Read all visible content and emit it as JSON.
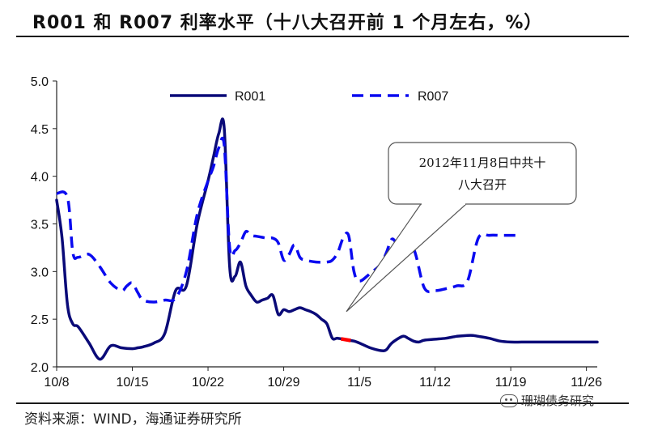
{
  "chart_data": {
    "type": "line",
    "title": "R001 和 R007 利率水平（十八大召开前 1 个月左右，%）",
    "xlabel": "",
    "ylabel": "",
    "ylim": [
      2.0,
      5.0
    ],
    "yticks": [
      "2.0",
      "2.5",
      "3.0",
      "3.5",
      "4.0",
      "4.5",
      "5.0"
    ],
    "categories": [
      "10/8",
      "10/15",
      "10/22",
      "10/29",
      "11/5",
      "11/12",
      "11/19",
      "11/26"
    ],
    "x_range_days": [
      0,
      50
    ],
    "x_ticks_days": [
      0,
      7,
      14,
      21,
      28,
      35,
      42,
      49
    ],
    "series": [
      {
        "name": "R001",
        "style": "solid",
        "color": "#0a0a78",
        "x": [
          0,
          0.5,
          1,
          1.5,
          2,
          3,
          4,
          5,
          6,
          7,
          7.5,
          8,
          9,
          10,
          11,
          12,
          13,
          14,
          14.5,
          15,
          15.5,
          16,
          16.5,
          17,
          17.5,
          18,
          18.5,
          19,
          19.5,
          20,
          20.5,
          21,
          21.5,
          22,
          22.5,
          23,
          23.5,
          24,
          24.5,
          25,
          25.5,
          26,
          27,
          27.5,
          28,
          29,
          30,
          30.5,
          31,
          32,
          32.5,
          33,
          33.5,
          34,
          35,
          36,
          37,
          38,
          38.5,
          39,
          40,
          41,
          42,
          43,
          44,
          45,
          46,
          47,
          48,
          49,
          50
        ],
        "values": [
          3.75,
          3.35,
          2.65,
          2.45,
          2.42,
          2.25,
          2.08,
          2.22,
          2.2,
          2.19,
          2.2,
          2.21,
          2.25,
          2.35,
          2.8,
          2.85,
          3.5,
          3.95,
          4.2,
          4.45,
          4.5,
          3.05,
          2.95,
          3.1,
          2.85,
          2.75,
          2.68,
          2.7,
          2.72,
          2.75,
          2.55,
          2.6,
          2.58,
          2.6,
          2.62,
          2.6,
          2.58,
          2.55,
          2.5,
          2.45,
          2.3,
          2.3,
          2.28,
          2.27,
          2.25,
          2.2,
          2.17,
          2.18,
          2.25,
          2.32,
          2.3,
          2.27,
          2.26,
          2.28,
          2.29,
          2.3,
          2.32,
          2.33,
          2.33,
          2.32,
          2.3,
          2.27,
          2.26,
          2.26,
          2.26,
          2.26,
          2.26,
          2.26,
          2.26,
          2.26,
          2.26
        ]
      },
      {
        "name": "R007",
        "style": "dashed",
        "color": "#0a0af0",
        "x": [
          0,
          1,
          1.5,
          2,
          3,
          4,
          5,
          6,
          6.5,
          7,
          7.5,
          8,
          9,
          10,
          11,
          12,
          13,
          14,
          14.5,
          15,
          15.5,
          16,
          16.5,
          17,
          17.5,
          18,
          18.5,
          19,
          19.5,
          20,
          20.5,
          21,
          21.5,
          22,
          22.5,
          23,
          24,
          25,
          25.5,
          26,
          26.5,
          27,
          27.5,
          28,
          29,
          30,
          30.5,
          31,
          31.5,
          32,
          33,
          34,
          35,
          36,
          37,
          38,
          39,
          40,
          41,
          42,
          43
        ],
        "values": [
          3.82,
          3.78,
          3.2,
          3.15,
          3.18,
          3.05,
          2.88,
          2.8,
          2.85,
          2.88,
          2.78,
          2.7,
          2.68,
          2.7,
          2.72,
          3.0,
          3.6,
          3.95,
          4.1,
          4.3,
          4.32,
          3.25,
          3.22,
          3.3,
          3.42,
          3.38,
          3.37,
          3.36,
          3.35,
          3.35,
          3.3,
          3.12,
          3.18,
          3.28,
          3.15,
          3.12,
          3.1,
          3.1,
          3.12,
          3.2,
          3.35,
          3.38,
          3.0,
          2.9,
          2.98,
          3.08,
          3.2,
          3.34,
          3.28,
          3.18,
          3.24,
          2.83,
          2.8,
          2.82,
          2.85,
          2.9,
          3.35,
          3.38,
          3.38,
          3.38,
          3.38
        ]
      }
    ],
    "legend": [
      "R001",
      "R007"
    ],
    "legend_position": "top-center",
    "highlight": {
      "series": "R001",
      "x_from": 26.3,
      "x_to": 27.2,
      "color": "#ff0000"
    },
    "annotation": {
      "lines": [
        "2012年11月8日中共十",
        "八大召开"
      ],
      "anchor_x_days": 26.8,
      "anchor_value": 2.58
    }
  },
  "source": "资料来源：WIND，海通证券研究所",
  "watermark": "珊瑚债务研究"
}
